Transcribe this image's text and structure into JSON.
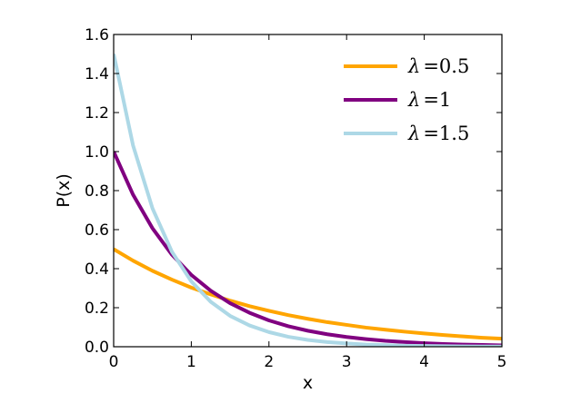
{
  "chart_data": {
    "type": "line",
    "title": "",
    "xlabel": "x",
    "ylabel": "P(x)",
    "xlim": [
      0,
      5
    ],
    "ylim": [
      0,
      1.6
    ],
    "x_ticks": [
      "0",
      "1",
      "2",
      "3",
      "4",
      "5"
    ],
    "y_ticks": [
      "0.0",
      "0.2",
      "0.4",
      "0.6",
      "0.8",
      "1.0",
      "1.2",
      "1.4",
      "1.6"
    ],
    "grid": false,
    "legend_position": "top-right",
    "series": [
      {
        "name": "λ =0.5",
        "color": "#ffa500",
        "x": [
          0,
          0.25,
          0.5,
          0.75,
          1,
          1.25,
          1.5,
          1.75,
          2,
          2.25,
          2.5,
          2.75,
          3,
          3.25,
          3.5,
          3.75,
          4,
          4.25,
          4.5,
          4.75,
          5
        ],
        "y": [
          0.5,
          0.441,
          0.389,
          0.344,
          0.303,
          0.268,
          0.236,
          0.208,
          0.184,
          0.162,
          0.143,
          0.126,
          0.112,
          0.098,
          0.087,
          0.077,
          0.068,
          0.06,
          0.053,
          0.046,
          0.041
        ]
      },
      {
        "name": "λ =1",
        "color": "#800080",
        "x": [
          0,
          0.25,
          0.5,
          0.75,
          1,
          1.25,
          1.5,
          1.75,
          2,
          2.25,
          2.5,
          2.75,
          3,
          3.25,
          3.5,
          3.75,
          4,
          4.25,
          4.5,
          4.75,
          5
        ],
        "y": [
          1.0,
          0.779,
          0.607,
          0.472,
          0.368,
          0.287,
          0.223,
          0.174,
          0.135,
          0.105,
          0.082,
          0.064,
          0.05,
          0.039,
          0.03,
          0.024,
          0.018,
          0.014,
          0.011,
          0.009,
          0.007
        ]
      },
      {
        "name": "λ =1.5",
        "color": "#add8e6",
        "x": [
          0,
          0.25,
          0.5,
          0.75,
          1,
          1.25,
          1.5,
          1.75,
          2,
          2.25,
          2.5,
          2.75,
          3,
          3.25,
          3.5,
          3.75,
          4,
          4.25,
          4.5,
          4.75,
          5
        ],
        "y": [
          1.5,
          1.031,
          0.709,
          0.487,
          0.335,
          0.23,
          0.158,
          0.109,
          0.075,
          0.051,
          0.035,
          0.024,
          0.017,
          0.011,
          0.008,
          0.005,
          0.004,
          0.003,
          0.002,
          0.001,
          0.001
        ]
      }
    ]
  }
}
